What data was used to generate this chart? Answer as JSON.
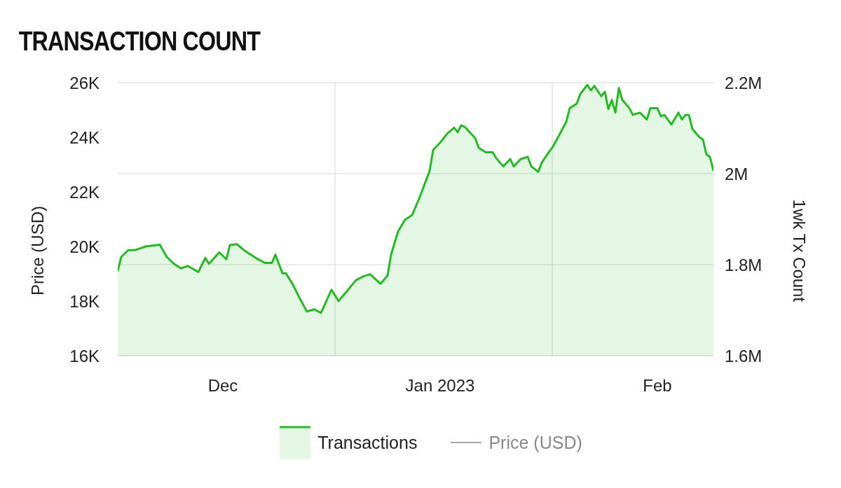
{
  "chart_data": {
    "type": "area",
    "title": "TRANSACTION COUNT",
    "ylabel": "Price (USD)",
    "y2label": "1wk Tx Count",
    "xlim": [
      "2022-11-16",
      "2023-02-09"
    ],
    "xticks": [
      {
        "value": "2022-12-01",
        "label": "Dec"
      },
      {
        "value": "2022-12-17",
        "label": null
      },
      {
        "value": "2023-01-01",
        "label": "Jan 2023"
      },
      {
        "value": "2023-01-17",
        "label": null
      },
      {
        "value": "2023-02-01",
        "label": "Feb"
      }
    ],
    "ylim": [
      16000,
      26000
    ],
    "yticks": [
      {
        "value": 16000,
        "label": "16K"
      },
      {
        "value": 18000,
        "label": "18K"
      },
      {
        "value": 20000,
        "label": "20K"
      },
      {
        "value": 22000,
        "label": "22K"
      },
      {
        "value": 24000,
        "label": "24K"
      },
      {
        "value": 26000,
        "label": "26K"
      }
    ],
    "y2lim": [
      1.6,
      2.2
    ],
    "y2ticks": [
      {
        "value": 1.6,
        "label": "1.6M"
      },
      {
        "value": 1.8,
        "label": "1.8M"
      },
      {
        "value": 2.0,
        "label": "2M"
      },
      {
        "value": 2.2,
        "label": "2.2M"
      }
    ],
    "grid": true,
    "legend": "bottom",
    "series": [
      {
        "name": "Transactions",
        "axis": "y2",
        "color": "#22bb22",
        "x": [
          "2022-11-16",
          "2022-11-16T12:00",
          "2022-11-17T12:00",
          "2022-11-18T12:00",
          "2022-11-20",
          "2022-11-22",
          "2022-11-23",
          "2022-11-24",
          "2022-11-25",
          "2022-11-26",
          "2022-11-27T12:00",
          "2022-11-28T12:00",
          "2022-11-29",
          "2022-11-30T12:00",
          "2022-12-01T12:00",
          "2022-12-02",
          "2022-12-03",
          "2022-12-04",
          "2022-12-05",
          "2022-12-06",
          "2022-12-07",
          "2022-12-08",
          "2022-12-08T12:00",
          "2022-12-09T12:00",
          "2022-12-10",
          "2022-12-11",
          "2022-12-12",
          "2022-12-13",
          "2022-12-14",
          "2022-12-15",
          "2022-12-16T12:00",
          "2022-12-17T12:00",
          "2022-12-18T12:00",
          "2022-12-20",
          "2022-12-21",
          "2022-12-22",
          "2022-12-23T12:00",
          "2022-12-24T12:00",
          "2022-12-25",
          "2022-12-26",
          "2022-12-27",
          "2022-12-28",
          "2022-12-29",
          "2022-12-29T12:00",
          "2022-12-30T12:00",
          "2022-12-31",
          "2023-01-01",
          "2023-01-02",
          "2023-01-03",
          "2023-01-03T12:00",
          "2023-01-04",
          "2023-01-04T12:00",
          "2023-01-06",
          "2023-01-06T12:00",
          "2023-01-07T12:00",
          "2023-01-08T12:00",
          "2023-01-09",
          "2023-01-10",
          "2023-01-11",
          "2023-01-11T12:00",
          "2023-01-12T12:00",
          "2023-01-13T12:00",
          "2023-01-14",
          "2023-01-15",
          "2023-01-15T12:00",
          "2023-01-16T12:00",
          "2023-01-17",
          "2023-01-18",
          "2023-01-19",
          "2023-01-19T12:00",
          "2023-01-20T12:00",
          "2023-01-21",
          "2023-01-22",
          "2023-01-22T12:00",
          "2023-01-23",
          "2023-01-24",
          "2023-01-24T12:00",
          "2023-01-25",
          "2023-01-25T12:00",
          "2023-01-26",
          "2023-01-26T12:00",
          "2023-01-27",
          "2023-01-28",
          "2023-01-28T12:00",
          "2023-01-29T12:00",
          "2023-01-30T12:00",
          "2023-01-31",
          "2023-02-01",
          "2023-02-01T12:00",
          "2023-02-02",
          "2023-02-03",
          "2023-02-04",
          "2023-02-04T12:00",
          "2023-02-05",
          "2023-02-05T12:00",
          "2023-02-06",
          "2023-02-07",
          "2023-02-07T12:00",
          "2023-02-08",
          "2023-02-08T12:00",
          "2023-02-09"
        ],
        "values": [
          1.786,
          1.817,
          1.832,
          1.832,
          1.84,
          1.844,
          1.817,
          1.802,
          1.792,
          1.797,
          1.784,
          1.815,
          1.802,
          1.827,
          1.812,
          1.843,
          1.845,
          1.832,
          1.822,
          1.812,
          1.804,
          1.804,
          1.822,
          1.781,
          1.781,
          1.756,
          1.725,
          1.697,
          1.702,
          1.694,
          1.745,
          1.72,
          1.738,
          1.766,
          1.774,
          1.779,
          1.758,
          1.776,
          1.822,
          1.873,
          1.899,
          1.909,
          1.945,
          1.965,
          2.006,
          2.052,
          2.068,
          2.088,
          2.101,
          2.091,
          2.106,
          2.103,
          2.078,
          2.057,
          2.047,
          2.047,
          2.034,
          2.016,
          2.032,
          2.016,
          2.032,
          2.037,
          2.016,
          2.004,
          2.024,
          2.047,
          2.057,
          2.085,
          2.114,
          2.144,
          2.154,
          2.175,
          2.195,
          2.183,
          2.193,
          2.17,
          2.18,
          2.142,
          2.162,
          2.134,
          2.188,
          2.162,
          2.144,
          2.129,
          2.134,
          2.119,
          2.144,
          2.144,
          2.126,
          2.129,
          2.108,
          2.134,
          2.119,
          2.129,
          2.129,
          2.098,
          2.08,
          2.075,
          2.042,
          2.037,
          2.006
        ]
      },
      {
        "name": "Price (USD)",
        "type": "line",
        "axis": "y",
        "color": "#888888"
      }
    ]
  }
}
